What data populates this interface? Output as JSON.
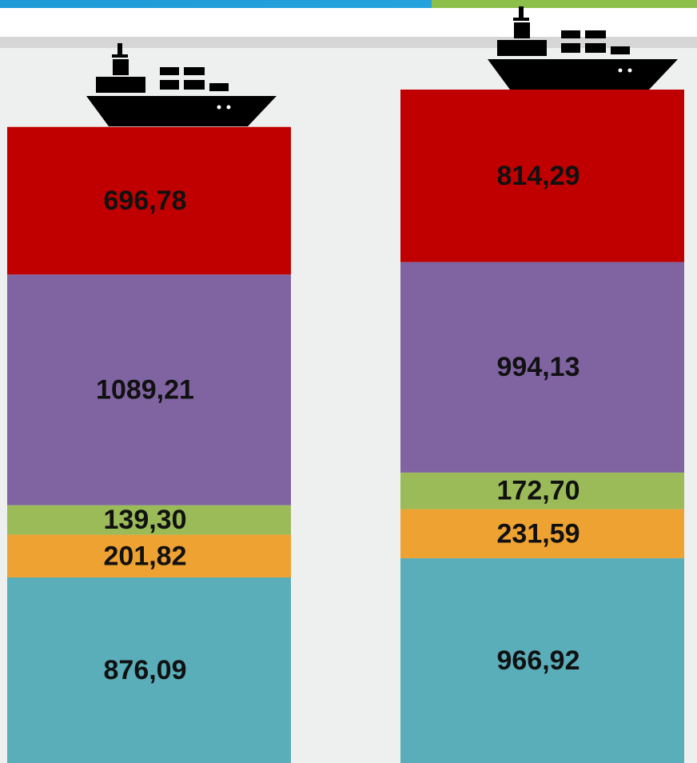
{
  "chart_data": {
    "type": "bar",
    "stacked": true,
    "categories": [
      null,
      null
    ],
    "series": [
      {
        "color": "#5aaeba",
        "values": [
          876.09,
          966.92
        ],
        "value_labels": [
          "876,09",
          "966,92"
        ]
      },
      {
        "color": "#eea231",
        "values": [
          201.82,
          231.59
        ],
        "value_labels": [
          "201,82",
          "231,59"
        ]
      },
      {
        "color": "#9bbb59",
        "values": [
          139.3,
          172.7
        ],
        "value_labels": [
          "139,30",
          "172,70"
        ]
      },
      {
        "color": "#8064a2",
        "values": [
          1089.21,
          994.13
        ],
        "value_labels": [
          "1089,21",
          "994,13"
        ]
      },
      {
        "color": "#c00000",
        "values": [
          696.78,
          814.29
        ],
        "value_labels": [
          "696,78",
          "814,29"
        ]
      }
    ]
  }
}
